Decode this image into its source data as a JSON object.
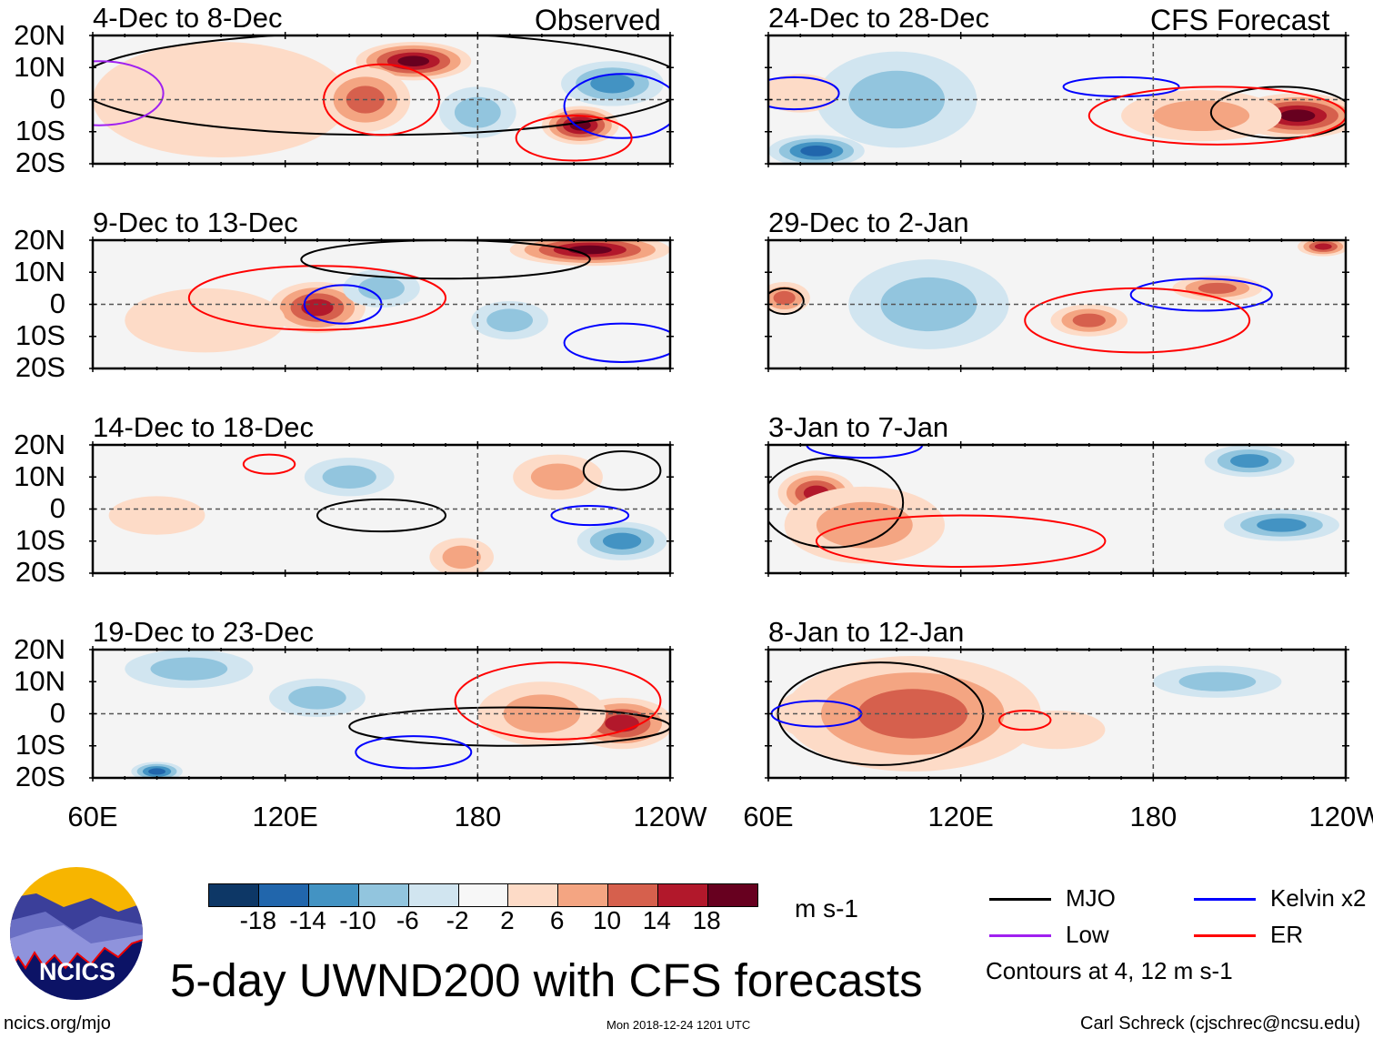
{
  "title": "5-day UWND200 with CFS forecasts",
  "footer": {
    "left": "ncics.org/mjo",
    "center": "Mon 2018-12-24 1201 UTC",
    "right": "Carl Schreck (cjschrec@ncsu.edu)"
  },
  "logo_text": "NCICS",
  "column_labels": {
    "observed": "Observed",
    "forecast": "CFS Forecast"
  },
  "lat_labels": [
    "20N",
    "10N",
    "0",
    "10S",
    "20S"
  ],
  "lon_labels": [
    "60E",
    "120E",
    "180",
    "120W"
  ],
  "colorbar": {
    "unit": "m s-1",
    "ticks": [
      "-18",
      "-14",
      "-10",
      "-6",
      "-2",
      "2",
      "6",
      "10",
      "14",
      "18"
    ],
    "colors": [
      "#0d3766",
      "#2166ac",
      "#4393c3",
      "#92c5de",
      "#d1e5f0",
      "#f7f7f7",
      "#fddbc7",
      "#f4a582",
      "#d6604d",
      "#b2182b",
      "#67001f"
    ]
  },
  "legend": {
    "items": [
      {
        "label": "MJO",
        "color": "#000000"
      },
      {
        "label": "Kelvin x2",
        "color": "#0000ff"
      },
      {
        "label": "Low",
        "color": "#a020f0"
      },
      {
        "label": "ER",
        "color": "#ff0000"
      }
    ],
    "note": "Contours at 4, 12 m s-1"
  },
  "chart_data": {
    "type": "heatmap",
    "variable": "200-hPa zonal wind anomaly",
    "lon_range": [
      60,
      240
    ],
    "lat_range": [
      -20,
      20
    ],
    "levels": [
      -18,
      -14,
      -10,
      -6,
      -2,
      2,
      6,
      10,
      14,
      18
    ],
    "contour_levels": [
      4,
      12
    ],
    "panels": [
      {
        "title": "4-Dec to 8-Dec",
        "kind": "observed",
        "anomalies": [
          {
            "lon": 100,
            "lat": 0,
            "v": 4,
            "dlon": 40,
            "dlat": 18
          },
          {
            "lon": 160,
            "lat": 12,
            "v": 18,
            "dlon": 18,
            "dlat": 6
          },
          {
            "lon": 145,
            "lat": 0,
            "v": 12,
            "dlon": 14,
            "dlat": 10
          },
          {
            "lon": 212,
            "lat": -8,
            "v": 18,
            "dlon": 12,
            "dlat": 6
          },
          {
            "lon": 222,
            "lat": 5,
            "v": -12,
            "dlon": 16,
            "dlat": 7
          },
          {
            "lon": 180,
            "lat": -4,
            "v": -6,
            "dlon": 12,
            "dlat": 8
          }
        ],
        "contours": [
          {
            "t": "MJO",
            "lon": 150,
            "lat": 5,
            "dlon": 95,
            "dlat": 16
          },
          {
            "t": "Kelvin",
            "lon": 225,
            "lat": -2,
            "dlon": 18,
            "dlat": 10
          },
          {
            "t": "ER",
            "lon": 150,
            "lat": 0,
            "dlon": 18,
            "dlat": 11
          },
          {
            "t": "ER",
            "lon": 210,
            "lat": -12,
            "dlon": 18,
            "dlat": 7
          },
          {
            "t": "Low",
            "lon": 62,
            "lat": 2,
            "dlon": 20,
            "dlat": 10
          }
        ]
      },
      {
        "title": "9-Dec to 13-Dec",
        "kind": "observed",
        "anomalies": [
          {
            "lon": 215,
            "lat": 17,
            "v": 18,
            "dlon": 25,
            "dlat": 5
          },
          {
            "lon": 130,
            "lat": -1,
            "v": 14,
            "dlon": 15,
            "dlat": 8
          },
          {
            "lon": 150,
            "lat": 5,
            "v": -6,
            "dlon": 12,
            "dlat": 6
          },
          {
            "lon": 190,
            "lat": -5,
            "v": -6,
            "dlon": 12,
            "dlat": 6
          },
          {
            "lon": 95,
            "lat": -5,
            "v": 4,
            "dlon": 25,
            "dlat": 10
          }
        ],
        "contours": [
          {
            "t": "ER",
            "lon": 130,
            "lat": 2,
            "dlon": 40,
            "dlat": 10
          },
          {
            "t": "Kelvin",
            "lon": 138,
            "lat": 0,
            "dlon": 12,
            "dlat": 6
          },
          {
            "t": "MJO",
            "lon": 170,
            "lat": 14,
            "dlon": 45,
            "dlat": 6
          },
          {
            "t": "Kelvin",
            "lon": 225,
            "lat": -12,
            "dlon": 18,
            "dlat": 6
          }
        ]
      },
      {
        "title": "14-Dec to 18-Dec",
        "kind": "observed",
        "anomalies": [
          {
            "lon": 225,
            "lat": -10,
            "v": -10,
            "dlon": 14,
            "dlat": 6
          },
          {
            "lon": 205,
            "lat": 10,
            "v": 6,
            "dlon": 14,
            "dlat": 7
          },
          {
            "lon": 140,
            "lat": 10,
            "v": -6,
            "dlon": 14,
            "dlat": 6
          },
          {
            "lon": 80,
            "lat": -2,
            "v": 4,
            "dlon": 15,
            "dlat": 6
          },
          {
            "lon": 175,
            "lat": -15,
            "v": 6,
            "dlon": 10,
            "dlat": 6
          }
        ],
        "contours": [
          {
            "t": "MJO",
            "lon": 150,
            "lat": -2,
            "dlon": 20,
            "dlat": 5
          },
          {
            "t": "MJO",
            "lon": 225,
            "lat": 12,
            "dlon": 12,
            "dlat": 6
          },
          {
            "t": "Kelvin",
            "lon": 215,
            "lat": -2,
            "dlon": 12,
            "dlat": 3
          },
          {
            "t": "ER",
            "lon": 115,
            "lat": 14,
            "dlon": 8,
            "dlat": 3
          }
        ]
      },
      {
        "title": "19-Dec to 23-Dec",
        "kind": "observed",
        "anomalies": [
          {
            "lon": 225,
            "lat": -3,
            "v": 14,
            "dlon": 16,
            "dlat": 8
          },
          {
            "lon": 200,
            "lat": 0,
            "v": 6,
            "dlon": 20,
            "dlat": 10
          },
          {
            "lon": 90,
            "lat": 14,
            "v": -6,
            "dlon": 20,
            "dlat": 6
          },
          {
            "lon": 80,
            "lat": -18,
            "v": -14,
            "dlon": 8,
            "dlat": 3
          },
          {
            "lon": 130,
            "lat": 5,
            "v": -6,
            "dlon": 15,
            "dlat": 6
          }
        ],
        "contours": [
          {
            "t": "MJO",
            "lon": 190,
            "lat": -4,
            "dlon": 50,
            "dlat": 6
          },
          {
            "t": "ER",
            "lon": 205,
            "lat": 4,
            "dlon": 32,
            "dlat": 12
          },
          {
            "t": "Kelvin",
            "lon": 160,
            "lat": -12,
            "dlon": 18,
            "dlat": 5
          }
        ]
      },
      {
        "title": "24-Dec to 28-Dec",
        "kind": "forecast",
        "anomalies": [
          {
            "lon": 225,
            "lat": -5,
            "v": 18,
            "dlon": 20,
            "dlat": 7
          },
          {
            "lon": 195,
            "lat": -5,
            "v": 6,
            "dlon": 25,
            "dlat": 8
          },
          {
            "lon": 100,
            "lat": 0,
            "v": -6,
            "dlon": 25,
            "dlat": 15
          },
          {
            "lon": 75,
            "lat": -16,
            "v": -14,
            "dlon": 15,
            "dlat": 5
          },
          {
            "lon": 70,
            "lat": 2,
            "v": 4,
            "dlon": 12,
            "dlat": 6
          }
        ],
        "contours": [
          {
            "t": "MJO",
            "lon": 220,
            "lat": -4,
            "dlon": 22,
            "dlat": 8
          },
          {
            "t": "Kelvin",
            "lon": 170,
            "lat": 4,
            "dlon": 18,
            "dlat": 3
          },
          {
            "t": "ER",
            "lon": 200,
            "lat": -5,
            "dlon": 40,
            "dlat": 9
          },
          {
            "t": "Kelvin",
            "lon": 68,
            "lat": 2,
            "dlon": 14,
            "dlat": 5
          }
        ]
      },
      {
        "title": "29-Dec to 2-Jan",
        "kind": "forecast",
        "anomalies": [
          {
            "lon": 160,
            "lat": -5,
            "v": 10,
            "dlon": 12,
            "dlat": 5
          },
          {
            "lon": 200,
            "lat": 5,
            "v": 10,
            "dlon": 14,
            "dlat": 4
          },
          {
            "lon": 233,
            "lat": 18,
            "v": 14,
            "dlon": 8,
            "dlat": 3
          },
          {
            "lon": 65,
            "lat": 2,
            "v": 10,
            "dlon": 8,
            "dlat": 5
          },
          {
            "lon": 110,
            "lat": 0,
            "v": -6,
            "dlon": 25,
            "dlat": 14
          }
        ],
        "contours": [
          {
            "t": "Kelvin",
            "lon": 195,
            "lat": 3,
            "dlon": 22,
            "dlat": 5
          },
          {
            "t": "ER",
            "lon": 175,
            "lat": -5,
            "dlon": 35,
            "dlat": 10
          },
          {
            "t": "MJO",
            "lon": 65,
            "lat": 1,
            "dlon": 6,
            "dlat": 4
          }
        ]
      },
      {
        "title": "3-Jan to 7-Jan",
        "kind": "forecast",
        "anomalies": [
          {
            "lon": 75,
            "lat": 5,
            "v": 14,
            "dlon": 12,
            "dlat": 7
          },
          {
            "lon": 90,
            "lat": -5,
            "v": 6,
            "dlon": 25,
            "dlat": 12
          },
          {
            "lon": 220,
            "lat": -5,
            "v": -10,
            "dlon": 18,
            "dlat": 5
          },
          {
            "lon": 210,
            "lat": 15,
            "v": -10,
            "dlon": 14,
            "dlat": 5
          }
        ],
        "contours": [
          {
            "t": "MJO",
            "lon": 80,
            "lat": 2,
            "dlon": 22,
            "dlat": 14
          },
          {
            "t": "ER",
            "lon": 120,
            "lat": -10,
            "dlon": 45,
            "dlat": 8
          },
          {
            "t": "Kelvin",
            "lon": 90,
            "lat": 20,
            "dlon": 18,
            "dlat": 4
          }
        ]
      },
      {
        "title": "8-Jan to 12-Jan",
        "kind": "forecast",
        "anomalies": [
          {
            "lon": 92,
            "lat": 0,
            "v": 18,
            "dlon": 30,
            "dlat": 11
          },
          {
            "lon": 105,
            "lat": 0,
            "v": 10,
            "dlon": 40,
            "dlat": 18
          },
          {
            "lon": 200,
            "lat": 10,
            "v": -6,
            "dlon": 20,
            "dlat": 5
          },
          {
            "lon": 150,
            "lat": -5,
            "v": 4,
            "dlon": 15,
            "dlat": 6
          }
        ],
        "contours": [
          {
            "t": "MJO",
            "lon": 95,
            "lat": 0,
            "dlon": 32,
            "dlat": 16
          },
          {
            "t": "ER",
            "lon": 140,
            "lat": -2,
            "dlon": 8,
            "dlat": 3
          },
          {
            "t": "Kelvin",
            "lon": 75,
            "lat": 0,
            "dlon": 14,
            "dlat": 4
          }
        ]
      }
    ]
  }
}
